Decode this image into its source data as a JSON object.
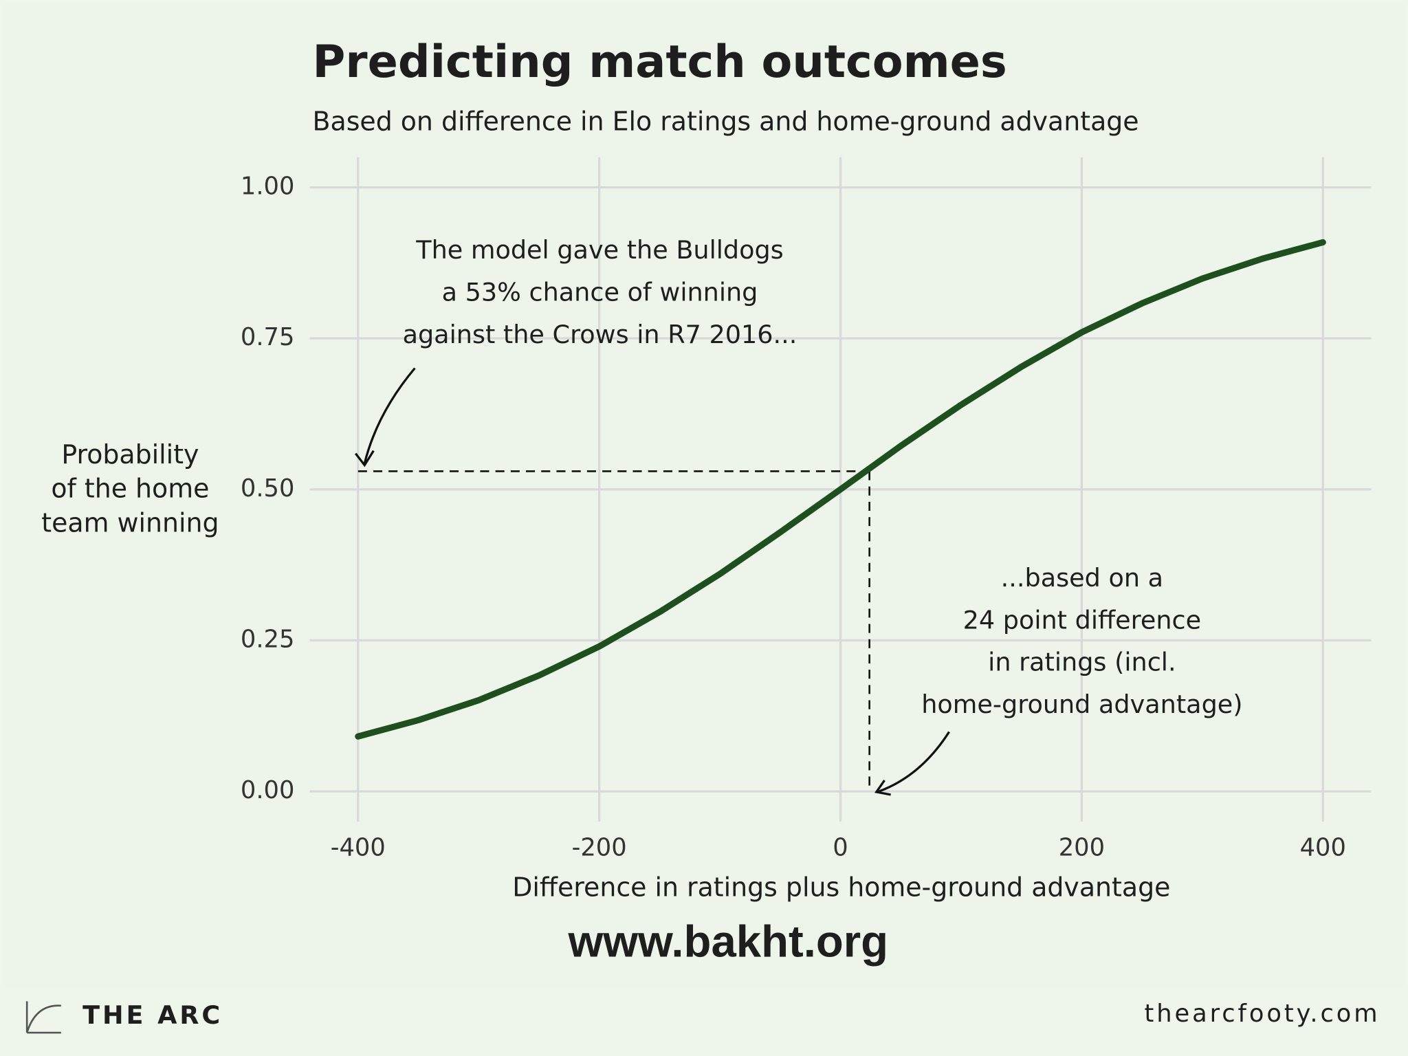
{
  "chart_data": {
    "type": "line",
    "title": "Predicting match outcomes",
    "subtitle": "Based on difference in Elo ratings and home-ground advantage",
    "x_label": "Difference in ratings plus home-ground advantage",
    "y_label": [
      "Probability",
      "of the home",
      "team winning"
    ],
    "x": [
      -400,
      -350,
      -300,
      -250,
      -200,
      -150,
      -100,
      -50,
      0,
      50,
      100,
      150,
      200,
      250,
      300,
      350,
      400
    ],
    "values": [
      0.091,
      0.118,
      0.151,
      0.192,
      0.24,
      0.297,
      0.36,
      0.429,
      0.5,
      0.572,
      0.64,
      0.703,
      0.76,
      0.808,
      0.849,
      0.882,
      0.909
    ],
    "color": "#1f4f1f",
    "xlim": [
      -440,
      440
    ],
    "xticks": [
      -400,
      -200,
      0,
      200,
      400
    ],
    "ylim": [
      -0.05,
      1.05
    ],
    "yticks": [
      {
        "value": 0,
        "label": "0.00"
      },
      {
        "value": 0.25,
        "label": "0.25"
      },
      {
        "value": 0.5,
        "label": "0.50"
      },
      {
        "value": 0.75,
        "label": "0.75"
      },
      {
        "value": 1,
        "label": "1.00"
      }
    ],
    "grid": true,
    "reference_point": {
      "x": 24,
      "y": 0.53
    },
    "annotations": [
      [
        "The model gave the Bulldogs",
        "a 53% chance of winning",
        "against the Crows in R7 2016..."
      ],
      [
        "...based on a",
        "24 point difference",
        "in ratings (incl.",
        "home-ground advantage)"
      ]
    ]
  },
  "watermark": "www.bakht.org",
  "footer": {
    "brand": "THE ARC",
    "url": "thearcfooty.com"
  }
}
